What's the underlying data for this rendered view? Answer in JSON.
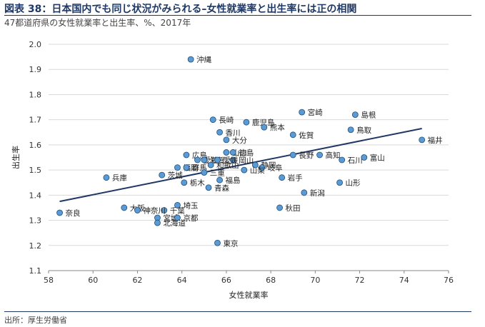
{
  "header": {
    "title": "図表 38：日本国内でも同じ状況がみられる–女性就業率と出生率には正の相関",
    "subtitle": "47都道府県の女性就業率と出生率、%、2017年"
  },
  "footer": {
    "source": "出所：厚生労働省"
  },
  "colors": {
    "point": "#5b9bd5",
    "point_stroke": "#1f4e79",
    "trend": "#1f3864",
    "grid": "#d9d9d9",
    "header": "#1f3864"
  },
  "chart_data": {
    "type": "scatter",
    "xlabel": "女性就業率",
    "ylabel": "出生率",
    "xlim": [
      58,
      76
    ],
    "ylim": [
      1.1,
      2.0
    ],
    "xticks": [
      58,
      60,
      62,
      64,
      66,
      68,
      70,
      72,
      74,
      76
    ],
    "yticks": [
      1.1,
      1.2,
      1.3,
      1.4,
      1.5,
      1.6,
      1.7,
      1.8,
      1.9,
      2.0
    ],
    "grid": "horizontal",
    "trendline": {
      "x": [
        58.5,
        74.8
      ],
      "y": [
        1.375,
        1.665
      ]
    },
    "points": [
      {
        "name": "沖縄",
        "x": 64.4,
        "y": 1.94,
        "label": "沖縄"
      },
      {
        "name": "宮崎",
        "x": 69.4,
        "y": 1.73,
        "label": "宮崎"
      },
      {
        "name": "島根",
        "x": 71.8,
        "y": 1.72,
        "label": "島根"
      },
      {
        "name": "長崎",
        "x": 65.4,
        "y": 1.7,
        "label": "長崎"
      },
      {
        "name": "鹿児島",
        "x": 66.9,
        "y": 1.69,
        "label": "鹿児島"
      },
      {
        "name": "熊本",
        "x": 67.7,
        "y": 1.67,
        "label": "熊本"
      },
      {
        "name": "香川",
        "x": 65.7,
        "y": 1.65,
        "label": "香川"
      },
      {
        "name": "鳥取",
        "x": 71.6,
        "y": 1.66,
        "label": "鳥取"
      },
      {
        "name": "佐賀",
        "x": 69.0,
        "y": 1.64,
        "label": "佐賀"
      },
      {
        "name": "大分",
        "x": 66.0,
        "y": 1.62,
        "label": "大分"
      },
      {
        "name": "福井",
        "x": 74.8,
        "y": 1.62,
        "label": "福井"
      },
      {
        "name": "広島",
        "x": 64.2,
        "y": 1.56,
        "label": "広島"
      },
      {
        "name": "山口",
        "x": 66.0,
        "y": 1.57,
        "label": "山口"
      },
      {
        "name": "徳島",
        "x": 66.3,
        "y": 1.57,
        "label": "徳島"
      },
      {
        "name": "長野",
        "x": 69.0,
        "y": 1.56,
        "label": "長野"
      },
      {
        "name": "高知",
        "x": 70.2,
        "y": 1.56,
        "label": "高知"
      },
      {
        "name": "石川",
        "x": 71.2,
        "y": 1.54,
        "label": "石川"
      },
      {
        "name": "富山",
        "x": 72.2,
        "y": 1.55,
        "label": "富山"
      },
      {
        "name": "愛知",
        "x": 64.7,
        "y": 1.54,
        "label": "愛知"
      },
      {
        "name": "滋賀",
        "x": 65.0,
        "y": 1.54,
        "label": "滋賀"
      },
      {
        "name": "岡山",
        "x": 66.3,
        "y": 1.54,
        "label": "岡山"
      },
      {
        "name": "和歌山",
        "x": 65.3,
        "y": 1.52,
        "label": "和歌山"
      },
      {
        "name": "愛媛",
        "x": 65.6,
        "y": 1.54,
        "label": "愛媛"
      },
      {
        "name": "福岡",
        "x": 63.8,
        "y": 1.51,
        "label": "福岡"
      },
      {
        "name": "群馬",
        "x": 64.2,
        "y": 1.51,
        "label": "群馬"
      },
      {
        "name": "静岡",
        "x": 67.3,
        "y": 1.52,
        "label": "静岡"
      },
      {
        "name": "岐阜",
        "x": 67.6,
        "y": 1.51,
        "label": "岐阜"
      },
      {
        "name": "山梨",
        "x": 66.8,
        "y": 1.5,
        "label": "山梨"
      },
      {
        "name": "三重",
        "x": 65.0,
        "y": 1.49,
        "label": "三重"
      },
      {
        "name": "茨城",
        "x": 63.1,
        "y": 1.48,
        "label": "茨城"
      },
      {
        "name": "兵庫",
        "x": 60.6,
        "y": 1.47,
        "label": "兵庫"
      },
      {
        "name": "岩手",
        "x": 68.5,
        "y": 1.47,
        "label": "岩手"
      },
      {
        "name": "栃木",
        "x": 64.1,
        "y": 1.45,
        "label": "栃木"
      },
      {
        "name": "福島",
        "x": 65.7,
        "y": 1.46,
        "label": "福島"
      },
      {
        "name": "山形",
        "x": 71.1,
        "y": 1.45,
        "label": "山形"
      },
      {
        "name": "青森",
        "x": 65.2,
        "y": 1.43,
        "label": "青森"
      },
      {
        "name": "新潟",
        "x": 69.5,
        "y": 1.41,
        "label": "新潟"
      },
      {
        "name": "埼玉",
        "x": 63.8,
        "y": 1.36,
        "label": "埼玉"
      },
      {
        "name": "千葉",
        "x": 63.2,
        "y": 1.34,
        "label": "千葉"
      },
      {
        "name": "大阪",
        "x": 61.4,
        "y": 1.35,
        "label": "大阪"
      },
      {
        "name": "秋田",
        "x": 68.4,
        "y": 1.35,
        "label": "秋田"
      },
      {
        "name": "神奈川",
        "x": 62.0,
        "y": 1.34,
        "label": "神奈川"
      },
      {
        "name": "奈良",
        "x": 58.5,
        "y": 1.33,
        "label": "奈良"
      },
      {
        "name": "宮城",
        "x": 62.9,
        "y": 1.31,
        "label": "宮城"
      },
      {
        "name": "京都",
        "x": 63.8,
        "y": 1.31,
        "label": "京都"
      },
      {
        "name": "北海道",
        "x": 62.9,
        "y": 1.29,
        "label": "北海道"
      },
      {
        "name": "東京",
        "x": 65.6,
        "y": 1.21,
        "label": "東京"
      }
    ]
  }
}
